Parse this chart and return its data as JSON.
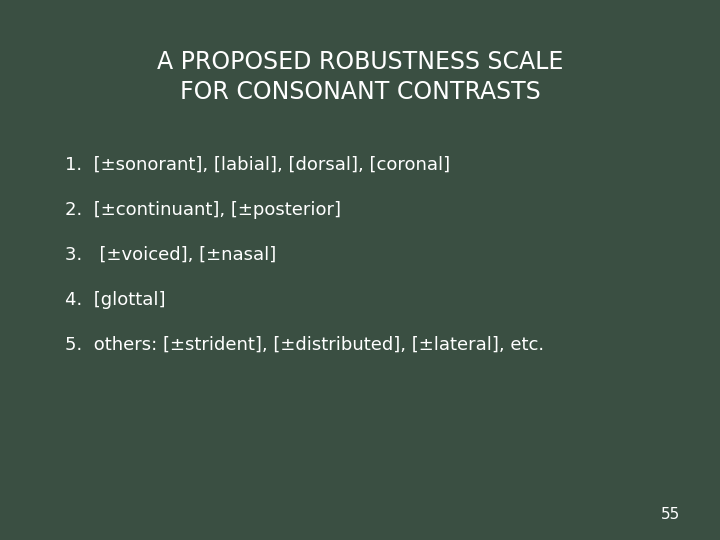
{
  "title_line1": "A PROPOSED ROBUSTNESS SCALE",
  "title_line2": "FOR CONSONANT CONTRASTS",
  "items": [
    "1.  [±sonorant], [labial], [dorsal], [coronal]",
    "2.  [±continuant], [±posterior]",
    "3.   [±voiced], [±nasal]",
    "4.  [glottal]",
    "5.  others: [±strident], [±distributed], [±lateral], etc."
  ],
  "page_number": "55",
  "background_color": "#3a4f42",
  "text_color": "#ffffff",
  "title_fontsize": 17,
  "item_fontsize": 13,
  "page_fontsize": 11
}
